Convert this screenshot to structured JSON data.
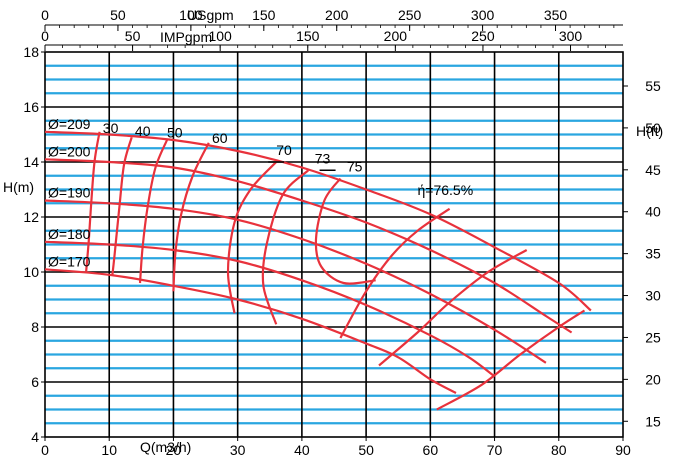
{
  "chart_data": {
    "type": "line",
    "subtype": "pump performance curve",
    "x_axis": {
      "label": "Q(m3/h)",
      "range": [
        0,
        90
      ],
      "ticks": [
        0,
        10,
        20,
        30,
        40,
        50,
        60,
        70,
        80,
        90
      ]
    },
    "y_axis_left": {
      "label": "H(m)",
      "range": [
        4,
        18
      ],
      "ticks": [
        4,
        6,
        8,
        10,
        12,
        14,
        16,
        18
      ]
    },
    "y_axis_right": {
      "label": "H(ft)",
      "ticks": [
        15,
        20,
        25,
        30,
        35,
        40,
        45,
        50,
        55
      ]
    },
    "top_axis_usgpm": {
      "label": "USgpm",
      "ticks": [
        0,
        50,
        100,
        150,
        200,
        250,
        300,
        350
      ]
    },
    "top_axis_impgpm": {
      "label": "IMPgpm",
      "ticks": [
        0,
        50,
        100,
        150,
        200,
        250,
        300
      ]
    },
    "grid": true,
    "impeller_curves": [
      {
        "name": "Ø=209",
        "points": [
          [
            0,
            15.1
          ],
          [
            10,
            15.0
          ],
          [
            20,
            14.8
          ],
          [
            30,
            14.4
          ],
          [
            40,
            13.8
          ],
          [
            50,
            13.0
          ],
          [
            60,
            12.1
          ],
          [
            70,
            10.9
          ],
          [
            80,
            9.6
          ],
          [
            85,
            8.6
          ]
        ]
      },
      {
        "name": "Ø=200",
        "points": [
          [
            0,
            14.1
          ],
          [
            10,
            14.0
          ],
          [
            20,
            13.8
          ],
          [
            30,
            13.3
          ],
          [
            40,
            12.6
          ],
          [
            50,
            11.8
          ],
          [
            60,
            10.8
          ],
          [
            70,
            9.6
          ],
          [
            78,
            8.4
          ],
          [
            82,
            7.8
          ]
        ]
      },
      {
        "name": "Ø=190",
        "points": [
          [
            0,
            12.6
          ],
          [
            10,
            12.5
          ],
          [
            20,
            12.3
          ],
          [
            30,
            11.9
          ],
          [
            40,
            11.2
          ],
          [
            50,
            10.3
          ],
          [
            60,
            9.2
          ],
          [
            70,
            7.9
          ],
          [
            78,
            6.7
          ]
        ]
      },
      {
        "name": "Ø=180",
        "points": [
          [
            0,
            11.1
          ],
          [
            10,
            11.0
          ],
          [
            20,
            10.8
          ],
          [
            30,
            10.4
          ],
          [
            40,
            9.7
          ],
          [
            50,
            8.8
          ],
          [
            60,
            7.7
          ],
          [
            66,
            6.9
          ],
          [
            70,
            6.2
          ]
        ]
      },
      {
        "name": "Ø=170",
        "points": [
          [
            0,
            10.1
          ],
          [
            10,
            9.9
          ],
          [
            20,
            9.5
          ],
          [
            30,
            9.0
          ],
          [
            40,
            8.3
          ],
          [
            50,
            7.4
          ],
          [
            55,
            6.9
          ],
          [
            60,
            6.1
          ],
          [
            64,
            5.6
          ]
        ]
      }
    ],
    "efficiency_curves": [
      {
        "name": "30",
        "points": [
          [
            8.5,
            15.1
          ],
          [
            7.7,
            14.0
          ],
          [
            7.2,
            12.5
          ],
          [
            6.8,
            11.1
          ],
          [
            6.4,
            10.0
          ]
        ]
      },
      {
        "name": "40",
        "points": [
          [
            13.5,
            14.9
          ],
          [
            12.3,
            13.9
          ],
          [
            11.6,
            12.4
          ],
          [
            11.0,
            11.0
          ],
          [
            10.5,
            9.9
          ]
        ]
      },
      {
        "name": "50",
        "points": [
          [
            19.0,
            14.8
          ],
          [
            17.2,
            13.8
          ],
          [
            16.0,
            12.4
          ],
          [
            15.2,
            10.9
          ],
          [
            14.8,
            9.6
          ]
        ]
      },
      {
        "name": "60",
        "points": [
          [
            25.5,
            14.7
          ],
          [
            23.0,
            13.5
          ],
          [
            21.2,
            12.1
          ],
          [
            20.3,
            10.7
          ],
          [
            20.0,
            9.3
          ]
        ]
      },
      {
        "name": "70",
        "points": [
          [
            36.0,
            14.0
          ],
          [
            32.0,
            13.0
          ],
          [
            29.5,
            11.8
          ],
          [
            28.5,
            10.0
          ],
          [
            29.5,
            8.5
          ]
        ]
      },
      {
        "name": "73",
        "points": [
          [
            41.0,
            13.7
          ],
          [
            37.0,
            12.8
          ],
          [
            34.5,
            11.0
          ],
          [
            34.0,
            9.5
          ],
          [
            36.0,
            8.1
          ]
        ]
      },
      {
        "name": "75",
        "points": [
          [
            46.0,
            13.4
          ],
          [
            43.5,
            12.6
          ],
          [
            42.2,
            11.2
          ],
          [
            43.0,
            10.2
          ],
          [
            46.5,
            9.6
          ],
          [
            51.5,
            9.7
          ]
        ]
      }
    ],
    "efficiency_labels": [
      {
        "text": "30",
        "at": [
          9,
          15.05
        ]
      },
      {
        "text": "40",
        "at": [
          14,
          14.95
        ]
      },
      {
        "text": "50",
        "at": [
          19,
          14.9
        ]
      },
      {
        "text": "60",
        "at": [
          26,
          14.7
        ]
      },
      {
        "text": "70",
        "at": [
          36,
          14.25
        ]
      },
      {
        "text": "73",
        "at": [
          42,
          13.95
        ]
      },
      {
        "text": "75",
        "at": [
          47,
          13.65
        ]
      },
      {
        "text": "ή=76.5%",
        "at": [
          58,
          12.8
        ]
      }
    ],
    "design_marks": [
      {
        "curve": "Ø=200",
        "label_slot": 1,
        "q": 36,
        "h": 14.0
      },
      {
        "curve": "Ø=209",
        "q": 44,
        "h": 13.7
      }
    ]
  }
}
